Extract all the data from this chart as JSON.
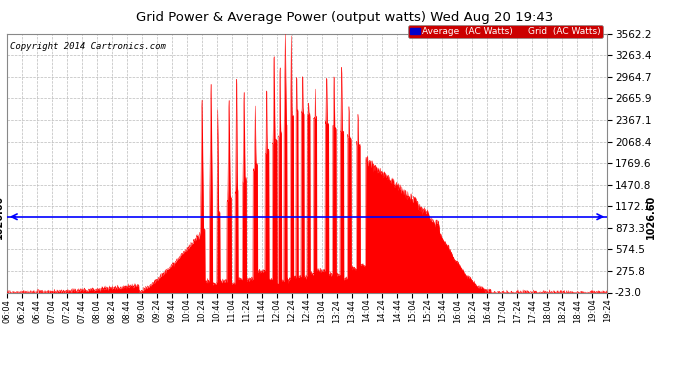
{
  "title": "Grid Power & Average Power (output watts) Wed Aug 20 19:43",
  "copyright": "Copyright 2014 Cartronics.com",
  "average_value": 1026.6,
  "yticks": [
    -23.0,
    275.8,
    574.5,
    873.3,
    1172.1,
    1470.8,
    1769.6,
    2068.4,
    2367.1,
    2665.9,
    2964.7,
    3263.4,
    3562.2
  ],
  "ylim": [
    -23.0,
    3562.2
  ],
  "background_color": "#ffffff",
  "grid_color": "#bbbbbb",
  "fill_color": "#ff0000",
  "line_color": "#ff0000",
  "average_line_color": "#0000ff",
  "xtick_labels": [
    "06:04",
    "06:24",
    "06:44",
    "07:04",
    "07:24",
    "07:44",
    "08:04",
    "08:24",
    "08:44",
    "09:04",
    "09:24",
    "09:44",
    "10:04",
    "10:24",
    "10:44",
    "11:04",
    "11:24",
    "11:44",
    "12:04",
    "12:24",
    "12:44",
    "13:04",
    "13:24",
    "13:44",
    "14:04",
    "14:24",
    "14:44",
    "15:04",
    "15:24",
    "15:44",
    "16:04",
    "16:24",
    "16:44",
    "17:04",
    "17:24",
    "17:44",
    "18:04",
    "18:24",
    "18:44",
    "19:04",
    "19:24"
  ]
}
